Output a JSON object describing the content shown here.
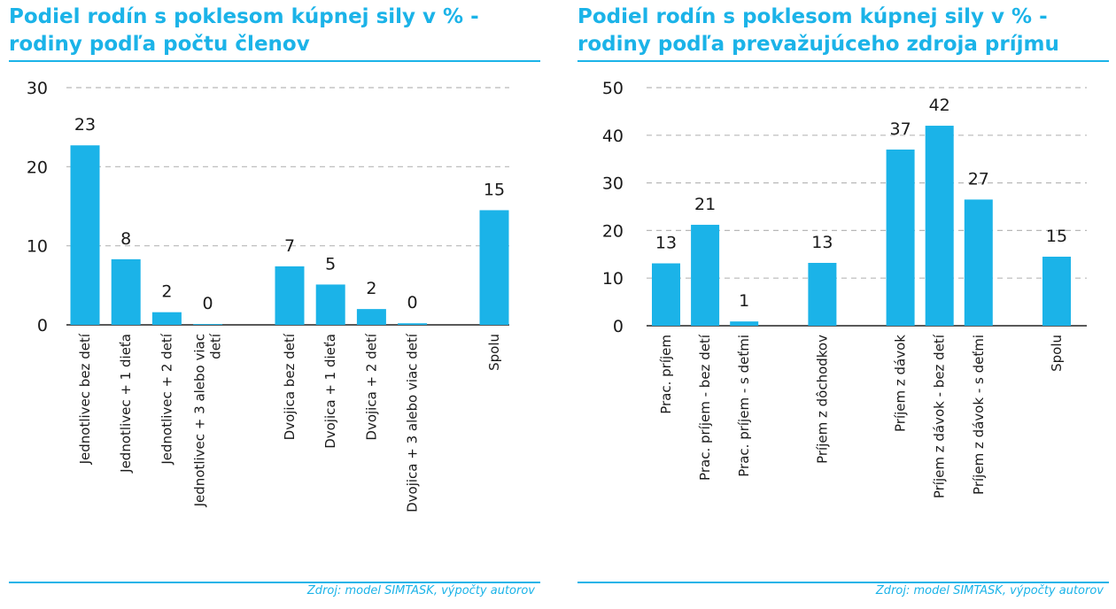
{
  "source_note": "Zdroj: model SIMTASK, výpočty autorov",
  "chart_data": [
    {
      "type": "bar",
      "title": "Podiel rodín s poklesom kúpnej sily v % - rodiny podľa počtu členov",
      "xlabel": "",
      "ylabel": "",
      "ylim": [
        0,
        30
      ],
      "yticks": [
        0,
        10,
        20,
        30
      ],
      "grid": true,
      "bar_color": "#1bb3e8",
      "categories": [
        "Jednotlivec bez detí",
        "Jednotlivec + 1 dieťa",
        "Jednotlivec + 2 detí",
        "Jednotlivec + 3 alebo viac detí",
        "",
        "Dvojica bez detí",
        "Dvojica + 1 dieťa",
        "Dvojica + 2 detí",
        "Dvojica + 3 alebo viac detí",
        "",
        "Spolu"
      ],
      "values": [
        22.7,
        8.3,
        1.6,
        0.1,
        null,
        7.4,
        5.1,
        2.0,
        0.2,
        null,
        14.5
      ],
      "data_labels": [
        "23",
        "8",
        "2",
        "0",
        "",
        "7",
        "5",
        "2",
        "0",
        "",
        "15"
      ]
    },
    {
      "type": "bar",
      "title": "Podiel rodín s poklesom kúpnej sily v % - rodiny podľa prevažujúceho zdroja príjmu",
      "xlabel": "",
      "ylabel": "",
      "ylim": [
        0,
        50
      ],
      "yticks": [
        0,
        10,
        20,
        30,
        40,
        50
      ],
      "grid": true,
      "bar_color": "#1bb3e8",
      "categories": [
        "Prac. príjem",
        "Prac. príjem - bez detí",
        "Prac. príjem - s deťmi",
        "",
        "Príjem z dôchodkov",
        "",
        "Príjem z dávok",
        "Príjem z dávok - bez detí",
        "Príjem z dávok - s deťmi",
        "",
        "Spolu"
      ],
      "values": [
        13.1,
        21.2,
        0.9,
        null,
        13.2,
        null,
        37.0,
        42.0,
        26.5,
        null,
        14.5
      ],
      "data_labels": [
        "13",
        "21",
        "1",
        "",
        "13",
        "",
        "37",
        "42",
        "27",
        "",
        "15"
      ]
    }
  ]
}
